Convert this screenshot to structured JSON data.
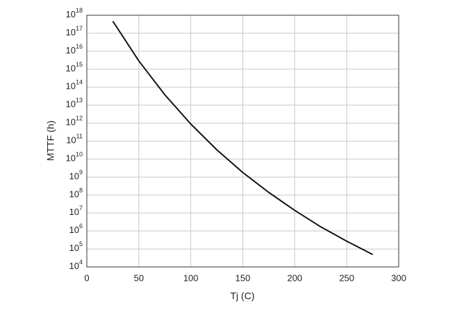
{
  "chart_data": {
    "type": "line",
    "xlabel": "Tj (C)",
    "ylabel": "MTTF (h)",
    "x": [
      25,
      50,
      75,
      100,
      125,
      150,
      175,
      200,
      225,
      250,
      275
    ],
    "series": [
      {
        "color": "#111111",
        "values": [
          4.7e+17,
          2900000000000000.0,
          38000000000000.0,
          890000000000.0,
          33000000000.0,
          1800000000.0,
          140000000.0,
          14000000.0,
          1700000.0,
          270000.0,
          49000.0
        ]
      }
    ],
    "xlim": [
      0,
      300
    ],
    "xticks": [
      0,
      50,
      100,
      150,
      200,
      250,
      300
    ],
    "yscale": "log",
    "ylim": [
      10000.0,
      1e+18
    ],
    "yticks": [
      {
        "value": 10000.0,
        "label": "10^4"
      },
      {
        "value": 100000.0,
        "label": "10^5"
      },
      {
        "value": 1000000.0,
        "label": "10^6"
      },
      {
        "value": 10000000.0,
        "label": "10^7"
      },
      {
        "value": 100000000.0,
        "label": "10^8"
      },
      {
        "value": 1000000000.0,
        "label": "10^9"
      },
      {
        "value": 10000000000.0,
        "label": "10^10"
      },
      {
        "value": 100000000000.0,
        "label": "10^11"
      },
      {
        "value": 1000000000000.0,
        "label": "10^12"
      },
      {
        "value": 10000000000000.0,
        "label": "10^13"
      },
      {
        "value": 100000000000000.0,
        "label": "10^14"
      },
      {
        "value": 1000000000000000.0,
        "label": "10^15"
      },
      {
        "value": 1e+16,
        "label": "10^16"
      },
      {
        "value": 1e+17,
        "label": "10^17"
      },
      {
        "value": 1e+18,
        "label": "10^18"
      }
    ],
    "grid": true
  }
}
